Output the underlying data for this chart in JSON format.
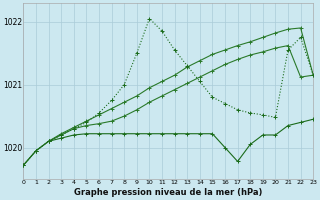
{
  "bg_color": "#cce8f0",
  "grid_color": "#aaccd8",
  "line_color_dark": "#1a6b1a",
  "line_color_mid": "#2a7a2a",
  "title": "Graphe pression niveau de la mer (hPa)",
  "xlim": [
    0,
    23
  ],
  "ylim": [
    1019.5,
    1022.3
  ],
  "yticks": [
    1020,
    1021,
    1022
  ],
  "xticks": [
    0,
    1,
    2,
    3,
    4,
    5,
    6,
    7,
    8,
    9,
    10,
    11,
    12,
    13,
    14,
    15,
    16,
    17,
    18,
    19,
    20,
    21,
    22,
    23
  ],
  "s1_x": [
    0,
    1,
    2,
    3,
    4,
    5,
    6,
    7,
    8,
    9,
    10,
    11,
    12,
    13,
    14,
    15,
    16,
    17,
    18,
    19,
    20,
    21,
    22,
    23
  ],
  "s1_y": [
    1019.72,
    1019.95,
    1020.1,
    1020.15,
    1020.2,
    1020.22,
    1020.22,
    1020.22,
    1020.22,
    1020.22,
    1020.22,
    1020.22,
    1020.22,
    1020.22,
    1020.22,
    1020.22,
    1020.0,
    1019.78,
    1020.05,
    1020.2,
    1020.2,
    1020.35,
    1020.4,
    1020.45
  ],
  "s2_x": [
    0,
    1,
    2,
    3,
    4,
    5,
    6,
    7,
    8,
    9,
    10,
    11,
    12,
    13,
    14,
    15,
    16,
    17,
    18,
    19,
    20,
    21,
    22,
    23
  ],
  "s2_y": [
    1019.72,
    1019.95,
    1020.1,
    1020.2,
    1020.3,
    1020.4,
    1020.55,
    1020.75,
    1021.0,
    1021.5,
    1022.05,
    1021.85,
    1021.55,
    1021.3,
    1021.05,
    1020.8,
    1020.7,
    1020.6,
    1020.55,
    1020.52,
    1020.48,
    1021.55,
    1021.75,
    1021.15
  ],
  "s3_x": [
    0,
    1,
    2,
    3,
    4,
    5,
    6,
    7,
    8,
    9,
    10,
    11,
    12,
    13,
    14,
    15,
    16,
    17,
    18,
    19,
    20,
    21,
    22,
    23
  ],
  "s3_y": [
    1019.72,
    1019.95,
    1020.1,
    1020.22,
    1020.32,
    1020.42,
    1020.52,
    1020.62,
    1020.72,
    1020.82,
    1020.95,
    1021.05,
    1021.15,
    1021.28,
    1021.38,
    1021.48,
    1021.55,
    1021.62,
    1021.68,
    1021.75,
    1021.82,
    1021.88,
    1021.9,
    1021.15
  ],
  "s4_x": [
    2,
    3,
    4,
    5,
    6,
    7,
    8,
    9,
    10,
    11,
    12,
    13,
    14,
    15,
    16,
    17,
    18,
    19,
    20,
    21,
    22,
    23
  ],
  "s4_y": [
    1020.1,
    1020.2,
    1020.3,
    1020.35,
    1020.38,
    1020.42,
    1020.5,
    1020.6,
    1020.72,
    1020.82,
    1020.92,
    1021.02,
    1021.12,
    1021.22,
    1021.32,
    1021.4,
    1021.47,
    1021.52,
    1021.58,
    1021.62,
    1021.12,
    1021.15
  ]
}
